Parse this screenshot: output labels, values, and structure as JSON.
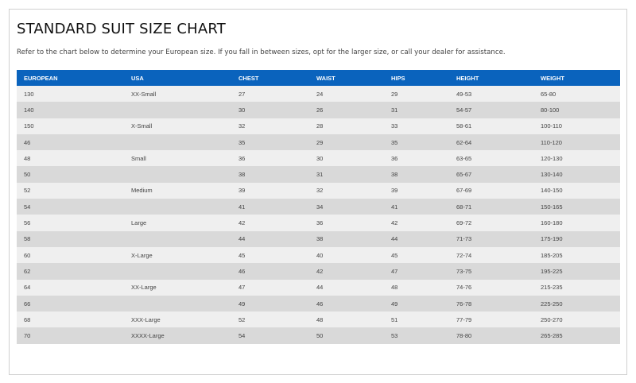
{
  "header": {
    "title": "STANDARD SUIT SIZE CHART",
    "description": "Refer to the chart below to determine your European size. If you fall in between sizes, opt for the larger size, or call your dealer for assistance."
  },
  "table": {
    "columns": [
      "EUROPEAN",
      "USA",
      "CHEST",
      "WAIST",
      "HIPS",
      "HEIGHT",
      "WEIGHT"
    ],
    "rows": [
      [
        "130",
        "XX-Small",
        "27",
        "24",
        "29",
        "49-53",
        "65-80"
      ],
      [
        "140",
        null,
        "30",
        "26",
        "31",
        "54-57",
        "80-100"
      ],
      [
        "150",
        "X-Small",
        "32",
        "28",
        "33",
        "58-61",
        "100-110"
      ],
      [
        "46",
        null,
        "35",
        "29",
        "35",
        "62-64",
        "110-120"
      ],
      [
        "48",
        "Small",
        "36",
        "30",
        "36",
        "63-65",
        "120-130"
      ],
      [
        "50",
        null,
        "38",
        "31",
        "38",
        "65-67",
        "130-140"
      ],
      [
        "52",
        "Medium",
        "39",
        "32",
        "39",
        "67-69",
        "140-150"
      ],
      [
        "54",
        null,
        "41",
        "34",
        "41",
        "68-71",
        "150-165"
      ],
      [
        "56",
        "Large",
        "42",
        "36",
        "42",
        "69-72",
        "160-180"
      ],
      [
        "58",
        null,
        "44",
        "38",
        "44",
        "71-73",
        "175-190"
      ],
      [
        "60",
        "X-Large",
        "45",
        "40",
        "45",
        "72-74",
        "185-205"
      ],
      [
        "62",
        null,
        "46",
        "42",
        "47",
        "73-75",
        "195-225"
      ],
      [
        "64",
        "XX-Large",
        "47",
        "44",
        "48",
        "74-76",
        "215-235"
      ],
      [
        "66",
        null,
        "49",
        "46",
        "49",
        "76-78",
        "225-250"
      ],
      [
        "68",
        "XXX-Large",
        "52",
        "48",
        "51",
        "77-79",
        "250-270"
      ],
      [
        "70",
        "XXXX-Large",
        "54",
        "50",
        "53",
        "78-80",
        "265-285"
      ]
    ]
  }
}
